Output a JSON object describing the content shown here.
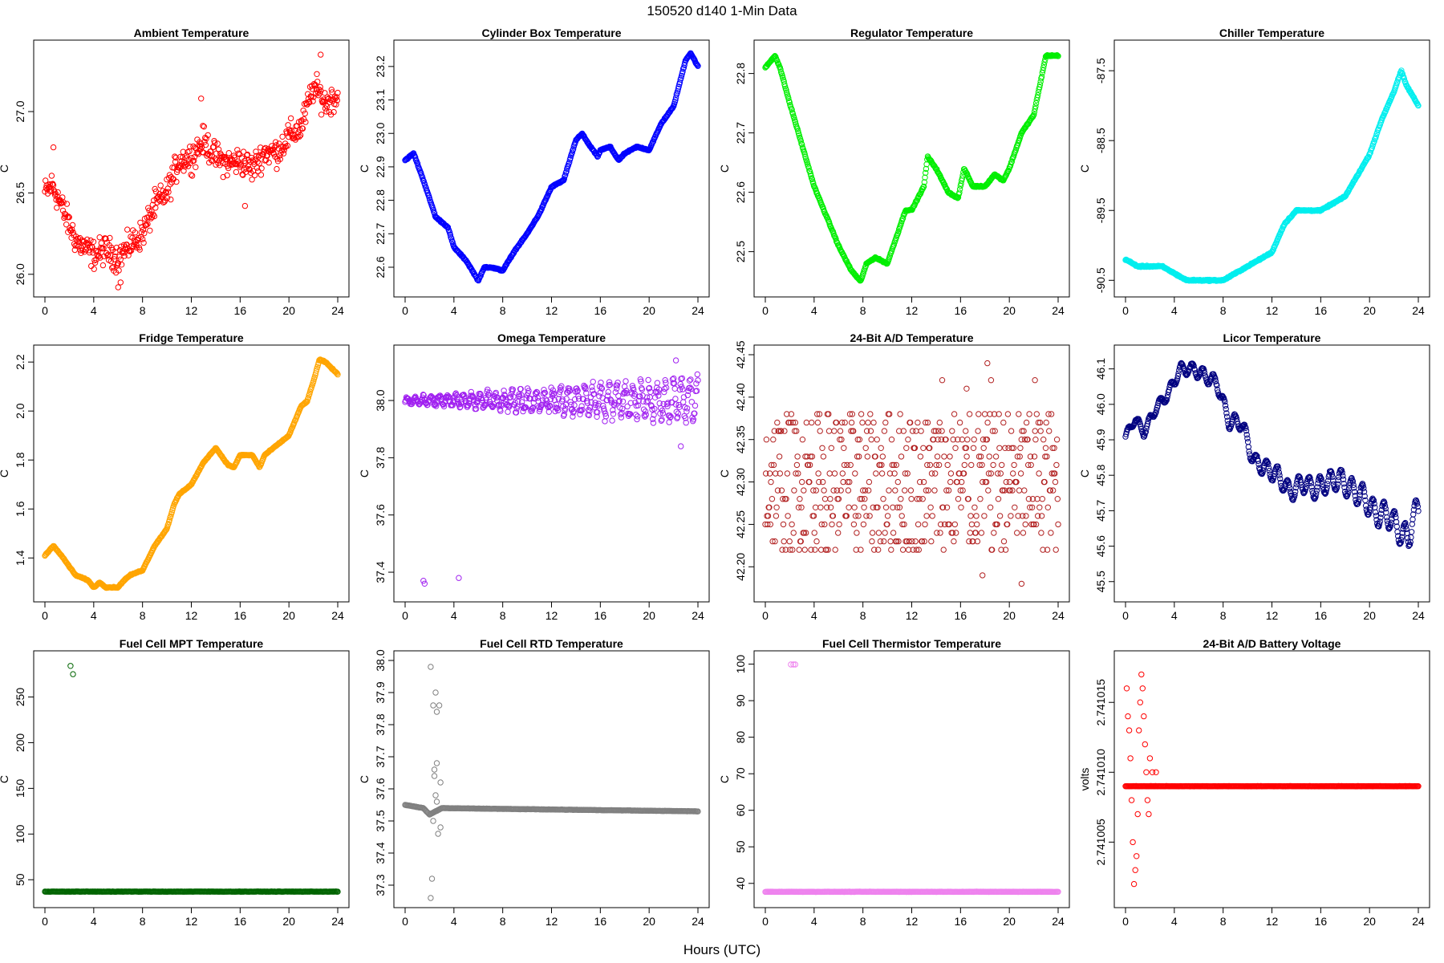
{
  "page": {
    "title": "150520    d140    1-Min Data",
    "xlabel": "Hours (UTC)"
  },
  "chart_data": [
    {
      "type": "scatter",
      "title": "Ambient Temperature",
      "ylabel": "C",
      "color": "#ff0000",
      "xlim": [
        0,
        24
      ],
      "ylim": [
        25.92,
        27.38
      ],
      "xticks": [
        "0",
        "4",
        "8",
        "12",
        "16",
        "20",
        "24"
      ],
      "yticks": [
        "26.0",
        "26.5",
        "27.0"
      ],
      "shape": "noisy",
      "noise": 0.08,
      "points": [
        [
          0,
          26.5
        ],
        [
          0.6,
          26.55
        ],
        [
          1.2,
          26.45
        ],
        [
          2,
          26.3
        ],
        [
          2.6,
          26.2
        ],
        [
          4,
          26.12
        ],
        [
          5,
          26.15
        ],
        [
          6,
          26.1
        ],
        [
          7,
          26.18
        ],
        [
          8,
          26.25
        ],
        [
          9,
          26.42
        ],
        [
          10,
          26.5
        ],
        [
          11,
          26.7
        ],
        [
          12,
          26.72
        ],
        [
          13,
          26.82
        ],
        [
          14,
          26.72
        ],
        [
          15,
          26.68
        ],
        [
          16,
          26.7
        ],
        [
          17,
          26.65
        ],
        [
          18,
          26.75
        ],
        [
          19,
          26.75
        ],
        [
          20,
          26.85
        ],
        [
          21,
          26.9
        ],
        [
          22,
          27.15
        ],
        [
          22.6,
          27.1
        ],
        [
          23,
          27.05
        ],
        [
          24,
          27.1
        ]
      ],
      "outliers": [
        [
          6.0,
          25.92
        ],
        [
          6.2,
          25.95
        ],
        [
          12.8,
          27.08
        ],
        [
          16.4,
          26.42
        ],
        [
          22.6,
          27.35
        ],
        [
          0.7,
          26.78
        ]
      ]
    },
    {
      "type": "scatter",
      "title": "Cylinder Box Temperature",
      "ylabel": "C",
      "color": "#0000ff",
      "xlim": [
        0,
        24
      ],
      "ylim": [
        22.54,
        23.25
      ],
      "xticks": [
        "0",
        "4",
        "8",
        "12",
        "16",
        "20",
        "24"
      ],
      "yticks": [
        "22.6",
        "22.7",
        "22.8",
        "22.9",
        "23.0",
        "23.1",
        "23.2"
      ],
      "shape": "step",
      "points": [
        [
          0,
          22.92
        ],
        [
          0.7,
          22.94
        ],
        [
          1.5,
          22.86
        ],
        [
          2.5,
          22.75
        ],
        [
          3.5,
          22.72
        ],
        [
          4,
          22.66
        ],
        [
          5,
          22.62
        ],
        [
          6,
          22.56
        ],
        [
          6.5,
          22.6
        ],
        [
          7,
          22.6
        ],
        [
          8,
          22.59
        ],
        [
          9,
          22.65
        ],
        [
          10,
          22.7
        ],
        [
          11,
          22.76
        ],
        [
          12,
          22.84
        ],
        [
          13,
          22.86
        ],
        [
          14,
          22.98
        ],
        [
          14.5,
          23.0
        ],
        [
          15,
          22.97
        ],
        [
          15.8,
          22.93
        ],
        [
          16,
          22.95
        ],
        [
          16.8,
          22.96
        ],
        [
          17.5,
          22.92
        ],
        [
          18,
          22.94
        ],
        [
          19,
          22.96
        ],
        [
          20,
          22.95
        ],
        [
          21,
          23.03
        ],
        [
          22,
          23.08
        ],
        [
          23,
          23.22
        ],
        [
          23.4,
          23.24
        ],
        [
          24,
          23.2
        ]
      ]
    },
    {
      "type": "scatter",
      "title": "Regulator Temperature",
      "ylabel": "C",
      "color": "#00ee00",
      "xlim": [
        0,
        24
      ],
      "ylim": [
        22.44,
        22.84
      ],
      "xticks": [
        "0",
        "4",
        "8",
        "12",
        "16",
        "20",
        "24"
      ],
      "yticks": [
        "22.5",
        "22.6",
        "22.7",
        "22.8"
      ],
      "shape": "step",
      "points": [
        [
          0,
          22.81
        ],
        [
          0.8,
          22.83
        ],
        [
          1.2,
          22.81
        ],
        [
          2,
          22.75
        ],
        [
          3,
          22.68
        ],
        [
          4,
          22.61
        ],
        [
          5,
          22.56
        ],
        [
          6,
          22.51
        ],
        [
          7,
          22.47
        ],
        [
          7.8,
          22.45
        ],
        [
          8.3,
          22.48
        ],
        [
          9,
          22.49
        ],
        [
          10,
          22.48
        ],
        [
          11,
          22.54
        ],
        [
          11.5,
          22.57
        ],
        [
          12,
          22.57
        ],
        [
          13,
          22.61
        ],
        [
          13.3,
          22.66
        ],
        [
          14,
          22.64
        ],
        [
          15,
          22.6
        ],
        [
          15.8,
          22.59
        ],
        [
          16.3,
          22.64
        ],
        [
          17,
          22.61
        ],
        [
          18,
          22.61
        ],
        [
          18.8,
          22.63
        ],
        [
          19.5,
          22.62
        ],
        [
          20,
          22.64
        ],
        [
          21,
          22.7
        ],
        [
          22,
          22.73
        ],
        [
          23,
          22.83
        ],
        [
          24,
          22.83
        ]
      ]
    },
    {
      "type": "scatter",
      "title": "Chiller Temperature",
      "ylabel": "C",
      "color": "#00eeee",
      "xlim": [
        0,
        24
      ],
      "ylim": [
        -90.6,
        -87.2
      ],
      "xticks": [
        "0",
        "4",
        "8",
        "12",
        "16",
        "20",
        "24"
      ],
      "yticks": [
        "-90.5",
        "-89.5",
        "-88.5",
        "-87.5"
      ],
      "shape": "step",
      "points": [
        [
          0,
          -90.2
        ],
        [
          1,
          -90.3
        ],
        [
          2,
          -90.3
        ],
        [
          3,
          -90.3
        ],
        [
          4,
          -90.4
        ],
        [
          5,
          -90.5
        ],
        [
          6,
          -90.5
        ],
        [
          7,
          -90.5
        ],
        [
          8,
          -90.5
        ],
        [
          9,
          -90.4
        ],
        [
          10,
          -90.3
        ],
        [
          11,
          -90.2
        ],
        [
          12,
          -90.1
        ],
        [
          13,
          -89.7
        ],
        [
          14,
          -89.5
        ],
        [
          15,
          -89.5
        ],
        [
          16,
          -89.5
        ],
        [
          17,
          -89.4
        ],
        [
          18,
          -89.3
        ],
        [
          19,
          -89.0
        ],
        [
          20,
          -88.7
        ],
        [
          21,
          -88.2
        ],
        [
          22,
          -87.8
        ],
        [
          22.6,
          -87.5
        ],
        [
          23,
          -87.7
        ],
        [
          24,
          -88.0
        ]
      ]
    },
    {
      "type": "scatter",
      "title": "Fridge Temperature",
      "ylabel": "C",
      "color": "#ffa500",
      "xlim": [
        0,
        24
      ],
      "ylim": [
        1.26,
        2.23
      ],
      "xticks": [
        "0",
        "4",
        "8",
        "12",
        "16",
        "20",
        "24"
      ],
      "yticks": [
        "1.4",
        "1.6",
        "1.8",
        "2.0",
        "2.2"
      ],
      "shape": "smooth",
      "points": [
        [
          0,
          1.41
        ],
        [
          0.7,
          1.45
        ],
        [
          1.5,
          1.4
        ],
        [
          2.5,
          1.33
        ],
        [
          3.5,
          1.31
        ],
        [
          4,
          1.28
        ],
        [
          4.5,
          1.3
        ],
        [
          5,
          1.28
        ],
        [
          6,
          1.28
        ],
        [
          6.5,
          1.31
        ],
        [
          7,
          1.33
        ],
        [
          8,
          1.35
        ],
        [
          9,
          1.45
        ],
        [
          10,
          1.52
        ],
        [
          10.6,
          1.62
        ],
        [
          11,
          1.66
        ],
        [
          12,
          1.7
        ],
        [
          13,
          1.79
        ],
        [
          14,
          1.85
        ],
        [
          15,
          1.78
        ],
        [
          15.5,
          1.77
        ],
        [
          16,
          1.82
        ],
        [
          17,
          1.82
        ],
        [
          17.6,
          1.77
        ],
        [
          18,
          1.82
        ],
        [
          19,
          1.86
        ],
        [
          20,
          1.9
        ],
        [
          21,
          2.02
        ],
        [
          21.5,
          2.04
        ],
        [
          22,
          2.12
        ],
        [
          22.5,
          2.21
        ],
        [
          23,
          2.2
        ],
        [
          24,
          2.15
        ]
      ]
    },
    {
      "type": "scatter",
      "title": "Omega Temperature",
      "ylabel": "C",
      "color": "#a020f0",
      "xlim": [
        0,
        24
      ],
      "ylim": [
        37.33,
        38.16
      ],
      "xticks": [
        "0",
        "4",
        "8",
        "12",
        "16",
        "20",
        "24"
      ],
      "yticks": [
        "37.4",
        "37.6",
        "37.8",
        "38.0"
      ],
      "shape": "wave",
      "base": 38.0,
      "amp": [
        0.02,
        0.15
      ],
      "points": [
        [
          0,
          38.0
        ],
        [
          24,
          38.0
        ]
      ],
      "outliers": [
        [
          1.5,
          37.37
        ],
        [
          1.6,
          37.36
        ],
        [
          4.4,
          37.38
        ],
        [
          22.6,
          37.84
        ],
        [
          22.2,
          38.14
        ]
      ]
    },
    {
      "type": "scatter",
      "title": "24-Bit A/D Temperature",
      "ylabel": "C",
      "color": "#b22222",
      "xlim": [
        0,
        24
      ],
      "ylim": [
        42.17,
        42.45
      ],
      "xticks": [
        "0",
        "4",
        "8",
        "12",
        "16",
        "20",
        "24"
      ],
      "yticks": [
        "42.20",
        "42.25",
        "42.30",
        "42.35",
        "42.40",
        "42.45"
      ],
      "shape": "quantized",
      "levels": [
        42.22,
        42.23,
        42.24,
        42.25,
        42.26,
        42.27,
        42.28,
        42.29,
        42.3,
        42.31,
        42.32,
        42.33,
        42.34,
        42.35,
        42.36,
        42.37,
        42.38
      ],
      "points": [
        [
          0,
          42.3
        ],
        [
          24,
          42.3
        ]
      ],
      "outliers": [
        [
          18.2,
          42.44
        ],
        [
          18.5,
          42.42
        ],
        [
          17.8,
          42.19
        ],
        [
          21,
          42.18
        ],
        [
          14.5,
          42.42
        ],
        [
          22.1,
          42.42
        ],
        [
          16.5,
          42.41
        ]
      ]
    },
    {
      "type": "scatter",
      "title": "Licor Temperature",
      "ylabel": "C",
      "color": "#000080",
      "xlim": [
        0,
        24
      ],
      "ylim": [
        45.47,
        46.14
      ],
      "xticks": [
        "0",
        "4",
        "8",
        "12",
        "16",
        "20",
        "24"
      ],
      "yticks": [
        "45.5",
        "45.6",
        "45.7",
        "45.8",
        "45.9",
        "46.0",
        "46.1"
      ],
      "shape": "wave2",
      "points": [
        [
          0,
          45.91
        ],
        [
          0.8,
          45.96
        ],
        [
          1.5,
          45.92
        ],
        [
          2.5,
          45.99
        ],
        [
          3.5,
          46.03
        ],
        [
          4.5,
          46.1
        ],
        [
          5.5,
          46.1
        ],
        [
          6.5,
          46.08
        ],
        [
          7.5,
          46.06
        ],
        [
          8.5,
          45.95
        ],
        [
          9.5,
          45.95
        ],
        [
          10.5,
          45.84
        ],
        [
          11.5,
          45.82
        ],
        [
          12.5,
          45.8
        ],
        [
          13.5,
          45.75
        ],
        [
          14.5,
          45.78
        ],
        [
          15.5,
          45.76
        ],
        [
          16.5,
          45.78
        ],
        [
          17.5,
          45.79
        ],
        [
          18.5,
          45.76
        ],
        [
          19.5,
          45.74
        ],
        [
          20.5,
          45.69
        ],
        [
          21.5,
          45.69
        ],
        [
          22.5,
          45.64
        ],
        [
          23.2,
          45.62
        ],
        [
          23.5,
          45.68
        ],
        [
          24,
          45.7
        ]
      ]
    },
    {
      "type": "scatter",
      "title": "Fuel Cell MPT Temperature",
      "ylabel": "C",
      "color": "#006400",
      "xlim": [
        0,
        24
      ],
      "ylim": [
        30,
        290
      ],
      "xticks": [
        "0",
        "4",
        "8",
        "12",
        "16",
        "20",
        "24"
      ],
      "yticks": [
        "50",
        "100",
        "150",
        "200",
        "250"
      ],
      "shape": "flat",
      "points": [
        [
          0,
          37
        ],
        [
          24,
          37
        ]
      ],
      "outliers": [
        [
          2.1,
          284
        ],
        [
          2.3,
          275
        ]
      ]
    },
    {
      "type": "scatter",
      "title": "Fuel Cell RTD Temperature",
      "ylabel": "C",
      "color": "#808080",
      "xlim": [
        0,
        24
      ],
      "ylim": [
        37.26,
        38.0
      ],
      "xticks": [
        "0",
        "4",
        "8",
        "12",
        "16",
        "20",
        "24"
      ],
      "yticks": [
        "37.3",
        "37.4",
        "37.5",
        "37.6",
        "37.7",
        "37.8",
        "37.9",
        "38.0"
      ],
      "shape": "flat",
      "points": [
        [
          0,
          37.55
        ],
        [
          1.5,
          37.54
        ],
        [
          2.0,
          37.52
        ],
        [
          3,
          37.54
        ],
        [
          24,
          37.53
        ]
      ],
      "outliers": [
        [
          2.1,
          37.98
        ],
        [
          2.3,
          37.86
        ],
        [
          2.5,
          37.9
        ],
        [
          2.6,
          37.84
        ],
        [
          2.8,
          37.86
        ],
        [
          2.4,
          37.66
        ],
        [
          2.6,
          37.68
        ],
        [
          2.2,
          37.32
        ],
        [
          2.1,
          37.26
        ],
        [
          2.7,
          37.46
        ],
        [
          2.9,
          37.48
        ],
        [
          2.5,
          37.58
        ],
        [
          2.3,
          37.5
        ],
        [
          2.6,
          37.56
        ],
        [
          2.9,
          37.62
        ],
        [
          2.4,
          37.64
        ]
      ]
    },
    {
      "type": "scatter",
      "title": "Fuel Cell Thermistor Temperature",
      "ylabel": "C",
      "color": "#ee82ee",
      "xlim": [
        0,
        24
      ],
      "ylim": [
        36,
        101
      ],
      "xticks": [
        "0",
        "4",
        "8",
        "12",
        "16",
        "20",
        "24"
      ],
      "yticks": [
        "40",
        "50",
        "60",
        "70",
        "80",
        "90",
        "100"
      ],
      "shape": "flat",
      "points": [
        [
          0,
          37.7
        ],
        [
          24,
          37.7
        ]
      ],
      "outliers": [
        [
          2.1,
          99.9
        ],
        [
          2.3,
          99.9
        ],
        [
          2.45,
          99.9
        ]
      ]
    },
    {
      "type": "scatter",
      "title": "24-Bit A/D Battery Voltage",
      "ylabel": "volts",
      "color": "#ff0000",
      "xlim": [
        0,
        24
      ],
      "ylim": [
        2.741001,
        2.741018
      ],
      "xticks": [
        "0",
        "4",
        "8",
        "12",
        "16",
        "20",
        "24"
      ],
      "yticks": [
        "2.741005",
        "2.741010",
        "2.741015"
      ],
      "shape": "flat",
      "points": [
        [
          0,
          2.741009
        ],
        [
          2.7,
          2.741009
        ],
        [
          24,
          2.741009
        ]
      ],
      "outliers": [
        [
          0.1,
          2.741016
        ],
        [
          0.2,
          2.741014
        ],
        [
          0.3,
          2.741013
        ],
        [
          0.4,
          2.741011
        ],
        [
          0.5,
          2.741008
        ],
        [
          0.6,
          2.741005
        ],
        [
          0.7,
          2.741002
        ],
        [
          0.8,
          2.741003
        ],
        [
          0.9,
          2.741004
        ],
        [
          1.0,
          2.741007
        ],
        [
          1.1,
          2.741013
        ],
        [
          1.2,
          2.741015
        ],
        [
          1.3,
          2.741017
        ],
        [
          1.4,
          2.741016
        ],
        [
          1.5,
          2.741014
        ],
        [
          1.6,
          2.741012
        ],
        [
          1.7,
          2.74101
        ],
        [
          1.8,
          2.741008
        ],
        [
          1.9,
          2.741007
        ],
        [
          2.0,
          2.741011
        ],
        [
          2.1,
          2.741009
        ],
        [
          2.2,
          2.74101
        ],
        [
          2.4,
          2.741009
        ],
        [
          2.5,
          2.74101
        ]
      ]
    }
  ]
}
